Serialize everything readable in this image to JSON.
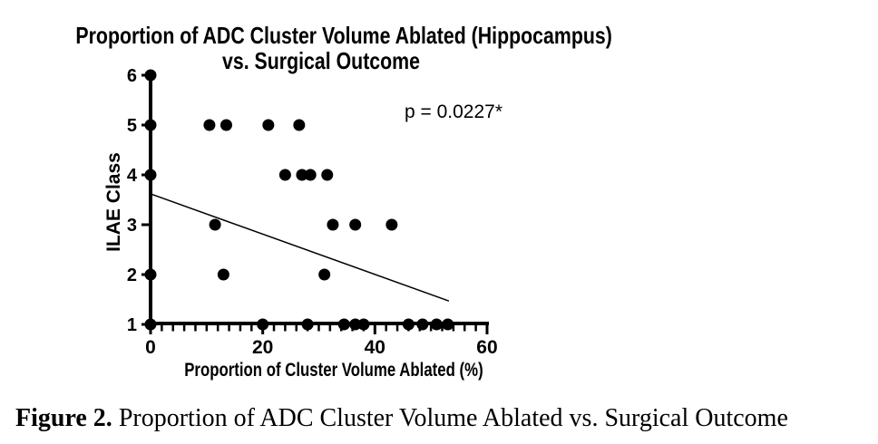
{
  "figure": {
    "caption_prefix": "Figure 2.",
    "caption_text": " Proportion of ADC Cluster Volume Ablated vs. Surgical Outcome"
  },
  "chart_data": {
    "type": "scatter",
    "title_line1": "Proportion of ADC Cluster Volume Ablated (Hippocampus)",
    "title_line2": "vs. Surgical Outcome",
    "xlabel": "Proportion of Cluster Volume Ablated (%)",
    "ylabel": "ILAE Class",
    "annotation": "p = 0.0227*",
    "xlim": [
      0,
      60
    ],
    "ylim": [
      1,
      6
    ],
    "x_major_ticks": [
      0,
      20,
      40,
      60
    ],
    "x_minor_tick_step": 2,
    "y_ticks": [
      1,
      2,
      3,
      4,
      5,
      6
    ],
    "grid": false,
    "legend": null,
    "marker_color": "#000000",
    "points": [
      [
        0,
        6
      ],
      [
        0,
        5
      ],
      [
        10.5,
        5
      ],
      [
        13.5,
        5
      ],
      [
        21,
        5
      ],
      [
        26.5,
        5
      ],
      [
        0,
        4
      ],
      [
        24,
        4
      ],
      [
        27,
        4
      ],
      [
        28.5,
        4
      ],
      [
        31.5,
        4
      ],
      [
        11.5,
        3
      ],
      [
        32.5,
        3
      ],
      [
        36.5,
        3
      ],
      [
        43,
        3
      ],
      [
        0,
        2
      ],
      [
        13,
        2
      ],
      [
        31,
        2
      ],
      [
        0,
        1
      ],
      [
        20,
        1
      ],
      [
        28,
        1
      ],
      [
        34.5,
        1
      ],
      [
        36.5,
        1
      ],
      [
        38,
        1
      ],
      [
        46,
        1
      ],
      [
        48.5,
        1
      ],
      [
        51,
        1
      ],
      [
        53,
        1
      ]
    ],
    "trend_line": {
      "x1": 0,
      "y1": 3.62,
      "x2": 53.2,
      "y2": 1.47
    }
  }
}
